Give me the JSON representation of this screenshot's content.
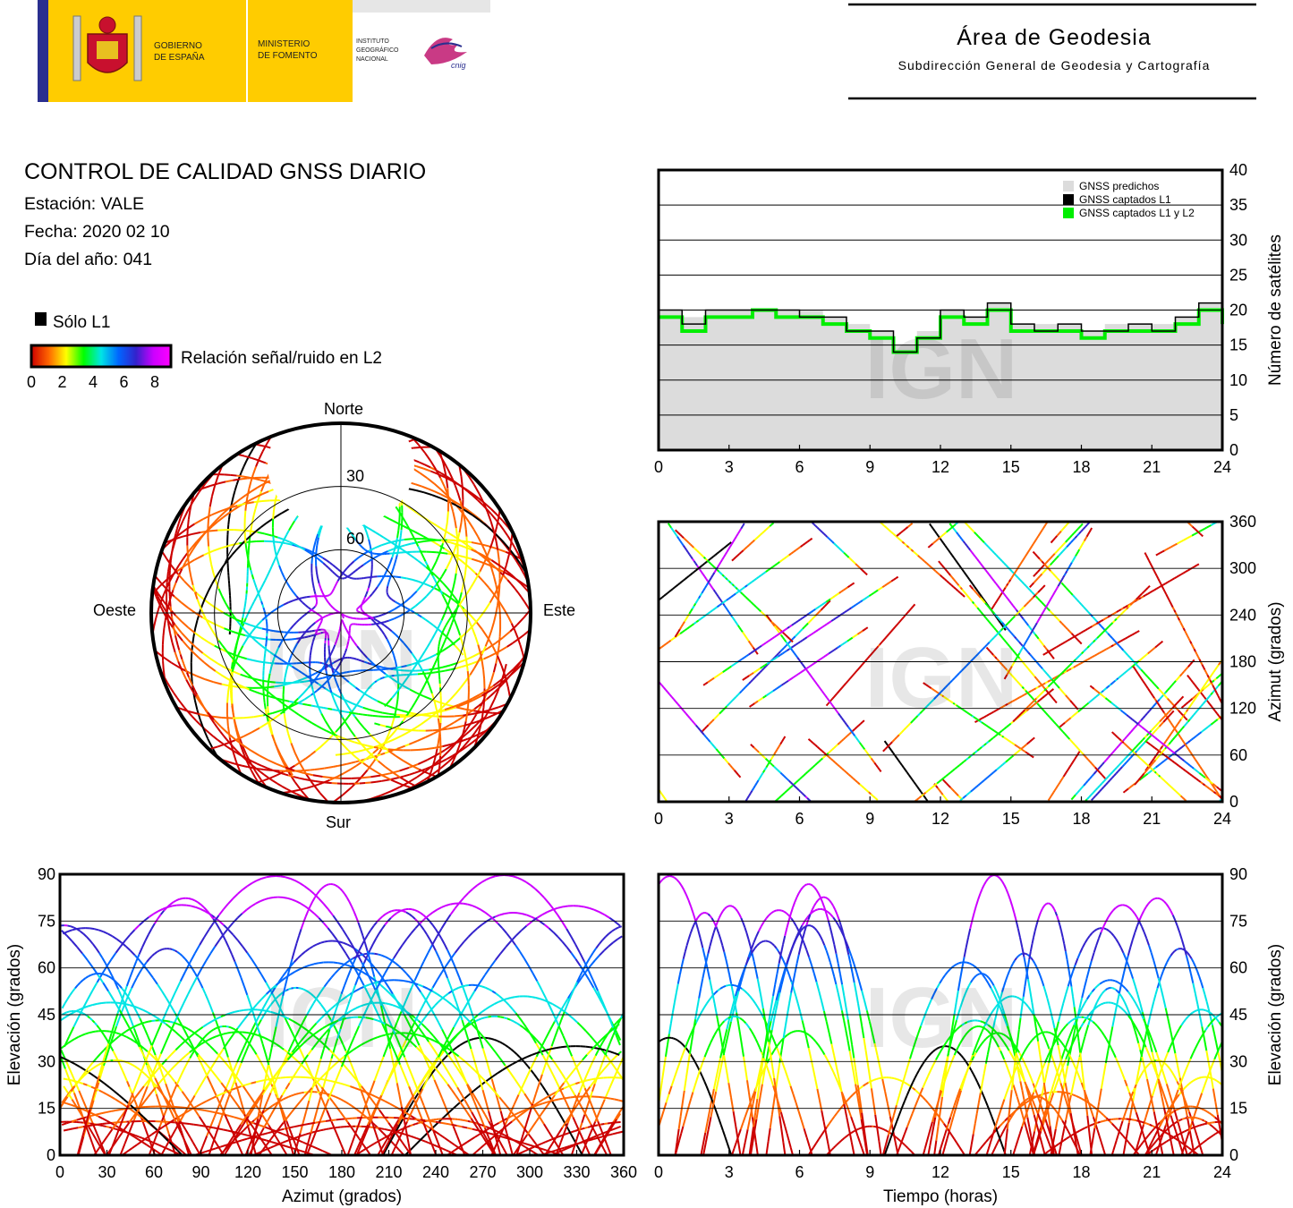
{
  "header": {
    "gov_line1": "GOBIERNO",
    "gov_line2": "DE ESPAÑA",
    "ministry_line1": "MINISTERIO",
    "ministry_line2": "DE FOMENTO",
    "ign_line1": "INSTITUTO",
    "ign_line2": "GEOGRÁFICO",
    "ign_line3": "NACIONAL",
    "cnig_label": "cnig",
    "area_title": "Área de Geodesia",
    "area_subtitle": "Subdirección General de Geodesia y Cartografía"
  },
  "info": {
    "title": "CONTROL DE CALIDAD GNSS DIARIO",
    "station": "Estación: VALE",
    "date": "Fecha: 2020 02 10",
    "doy": "Día del año: 041"
  },
  "legend": {
    "only_l1": "Sólo L1",
    "snr_label": "Relación señal/ruido en L2",
    "ticks": [
      "0",
      "2",
      "4",
      "6",
      "8"
    ],
    "gradient": [
      "#cc0000",
      "#ff6600",
      "#ffff00",
      "#00ff00",
      "#00e5e5",
      "#0066ff",
      "#3322cc",
      "#cc00ff",
      "#ff00ff"
    ]
  },
  "watermark": "IGN",
  "colors": {
    "predicted": "#dcdcdc",
    "l1": "#000000",
    "l1l2": "#00ee00"
  },
  "chart_data": [
    {
      "id": "satellites",
      "type": "area",
      "xlim": [
        0,
        24
      ],
      "ylim": [
        0,
        40
      ],
      "xticks": [
        "0",
        "3",
        "6",
        "9",
        "12",
        "15",
        "18",
        "21",
        "24"
      ],
      "yticks": [
        "0",
        "5",
        "10",
        "15",
        "20",
        "25",
        "30",
        "35",
        "40"
      ],
      "ylabel": "Número de satélites",
      "legend_position": "top-right",
      "grid": true,
      "x": [
        0,
        1,
        2,
        3,
        4,
        5,
        6,
        7,
        8,
        9,
        10,
        11,
        12,
        13,
        14,
        15,
        16,
        17,
        18,
        19,
        20,
        21,
        22,
        23,
        24
      ],
      "series": [
        {
          "name": "GNSS predichos",
          "values": [
            20,
            19,
            20,
            20,
            20,
            20,
            20,
            19,
            18,
            17,
            15,
            17,
            20,
            19,
            21,
            18,
            18,
            18,
            17,
            18,
            18,
            18,
            19,
            21,
            19
          ]
        },
        {
          "name": "GNSS captados L1",
          "values": [
            20,
            18,
            20,
            20,
            20,
            20,
            19,
            19,
            17,
            17,
            14,
            16,
            20,
            19,
            21,
            18,
            17,
            18,
            17,
            17,
            18,
            17,
            19,
            21,
            19
          ]
        },
        {
          "name": "GNSS captados L1 y L2",
          "values": [
            19,
            17,
            19,
            19,
            20,
            19,
            19,
            18,
            17,
            16,
            14,
            16,
            19,
            18,
            20,
            17,
            17,
            17,
            16,
            17,
            17,
            17,
            18,
            20,
            18
          ]
        }
      ]
    },
    {
      "id": "azimuth-time",
      "type": "scatter",
      "xlim": [
        0,
        24
      ],
      "ylim": [
        0,
        360
      ],
      "xticks": [
        "0",
        "3",
        "6",
        "9",
        "12",
        "15",
        "18",
        "21",
        "24"
      ],
      "yticks": [
        "0",
        "60",
        "120",
        "180",
        "240",
        "300",
        "360"
      ],
      "ylabel": "Azimut (grados)",
      "grid": true
    },
    {
      "id": "skyplot",
      "type": "scatter",
      "directions": {
        "north": "Norte",
        "south": "Sur",
        "west": "Oeste",
        "east": "Este"
      },
      "ring_labels": [
        "30",
        "60"
      ]
    },
    {
      "id": "elev-azimuth",
      "type": "scatter",
      "xlim": [
        0,
        360
      ],
      "ylim": [
        0,
        90
      ],
      "xticks": [
        "0",
        "30",
        "60",
        "90",
        "120",
        "150",
        "180",
        "210",
        "240",
        "270",
        "300",
        "330",
        "360"
      ],
      "yticks": [
        "0",
        "15",
        "30",
        "45",
        "60",
        "75",
        "90"
      ],
      "xlabel": "Azimut (grados)",
      "ylabel": "Elevación (grados)",
      "grid": true
    },
    {
      "id": "elev-time",
      "type": "scatter",
      "xlim": [
        0,
        24
      ],
      "ylim": [
        0,
        90
      ],
      "xticks": [
        "0",
        "3",
        "6",
        "9",
        "12",
        "15",
        "18",
        "21",
        "24"
      ],
      "yticks": [
        "0",
        "15",
        "30",
        "45",
        "60",
        "75",
        "90"
      ],
      "xlabel": "Tiempo (horas)",
      "ylabel": "Elevación (grados)",
      "grid": true
    }
  ]
}
